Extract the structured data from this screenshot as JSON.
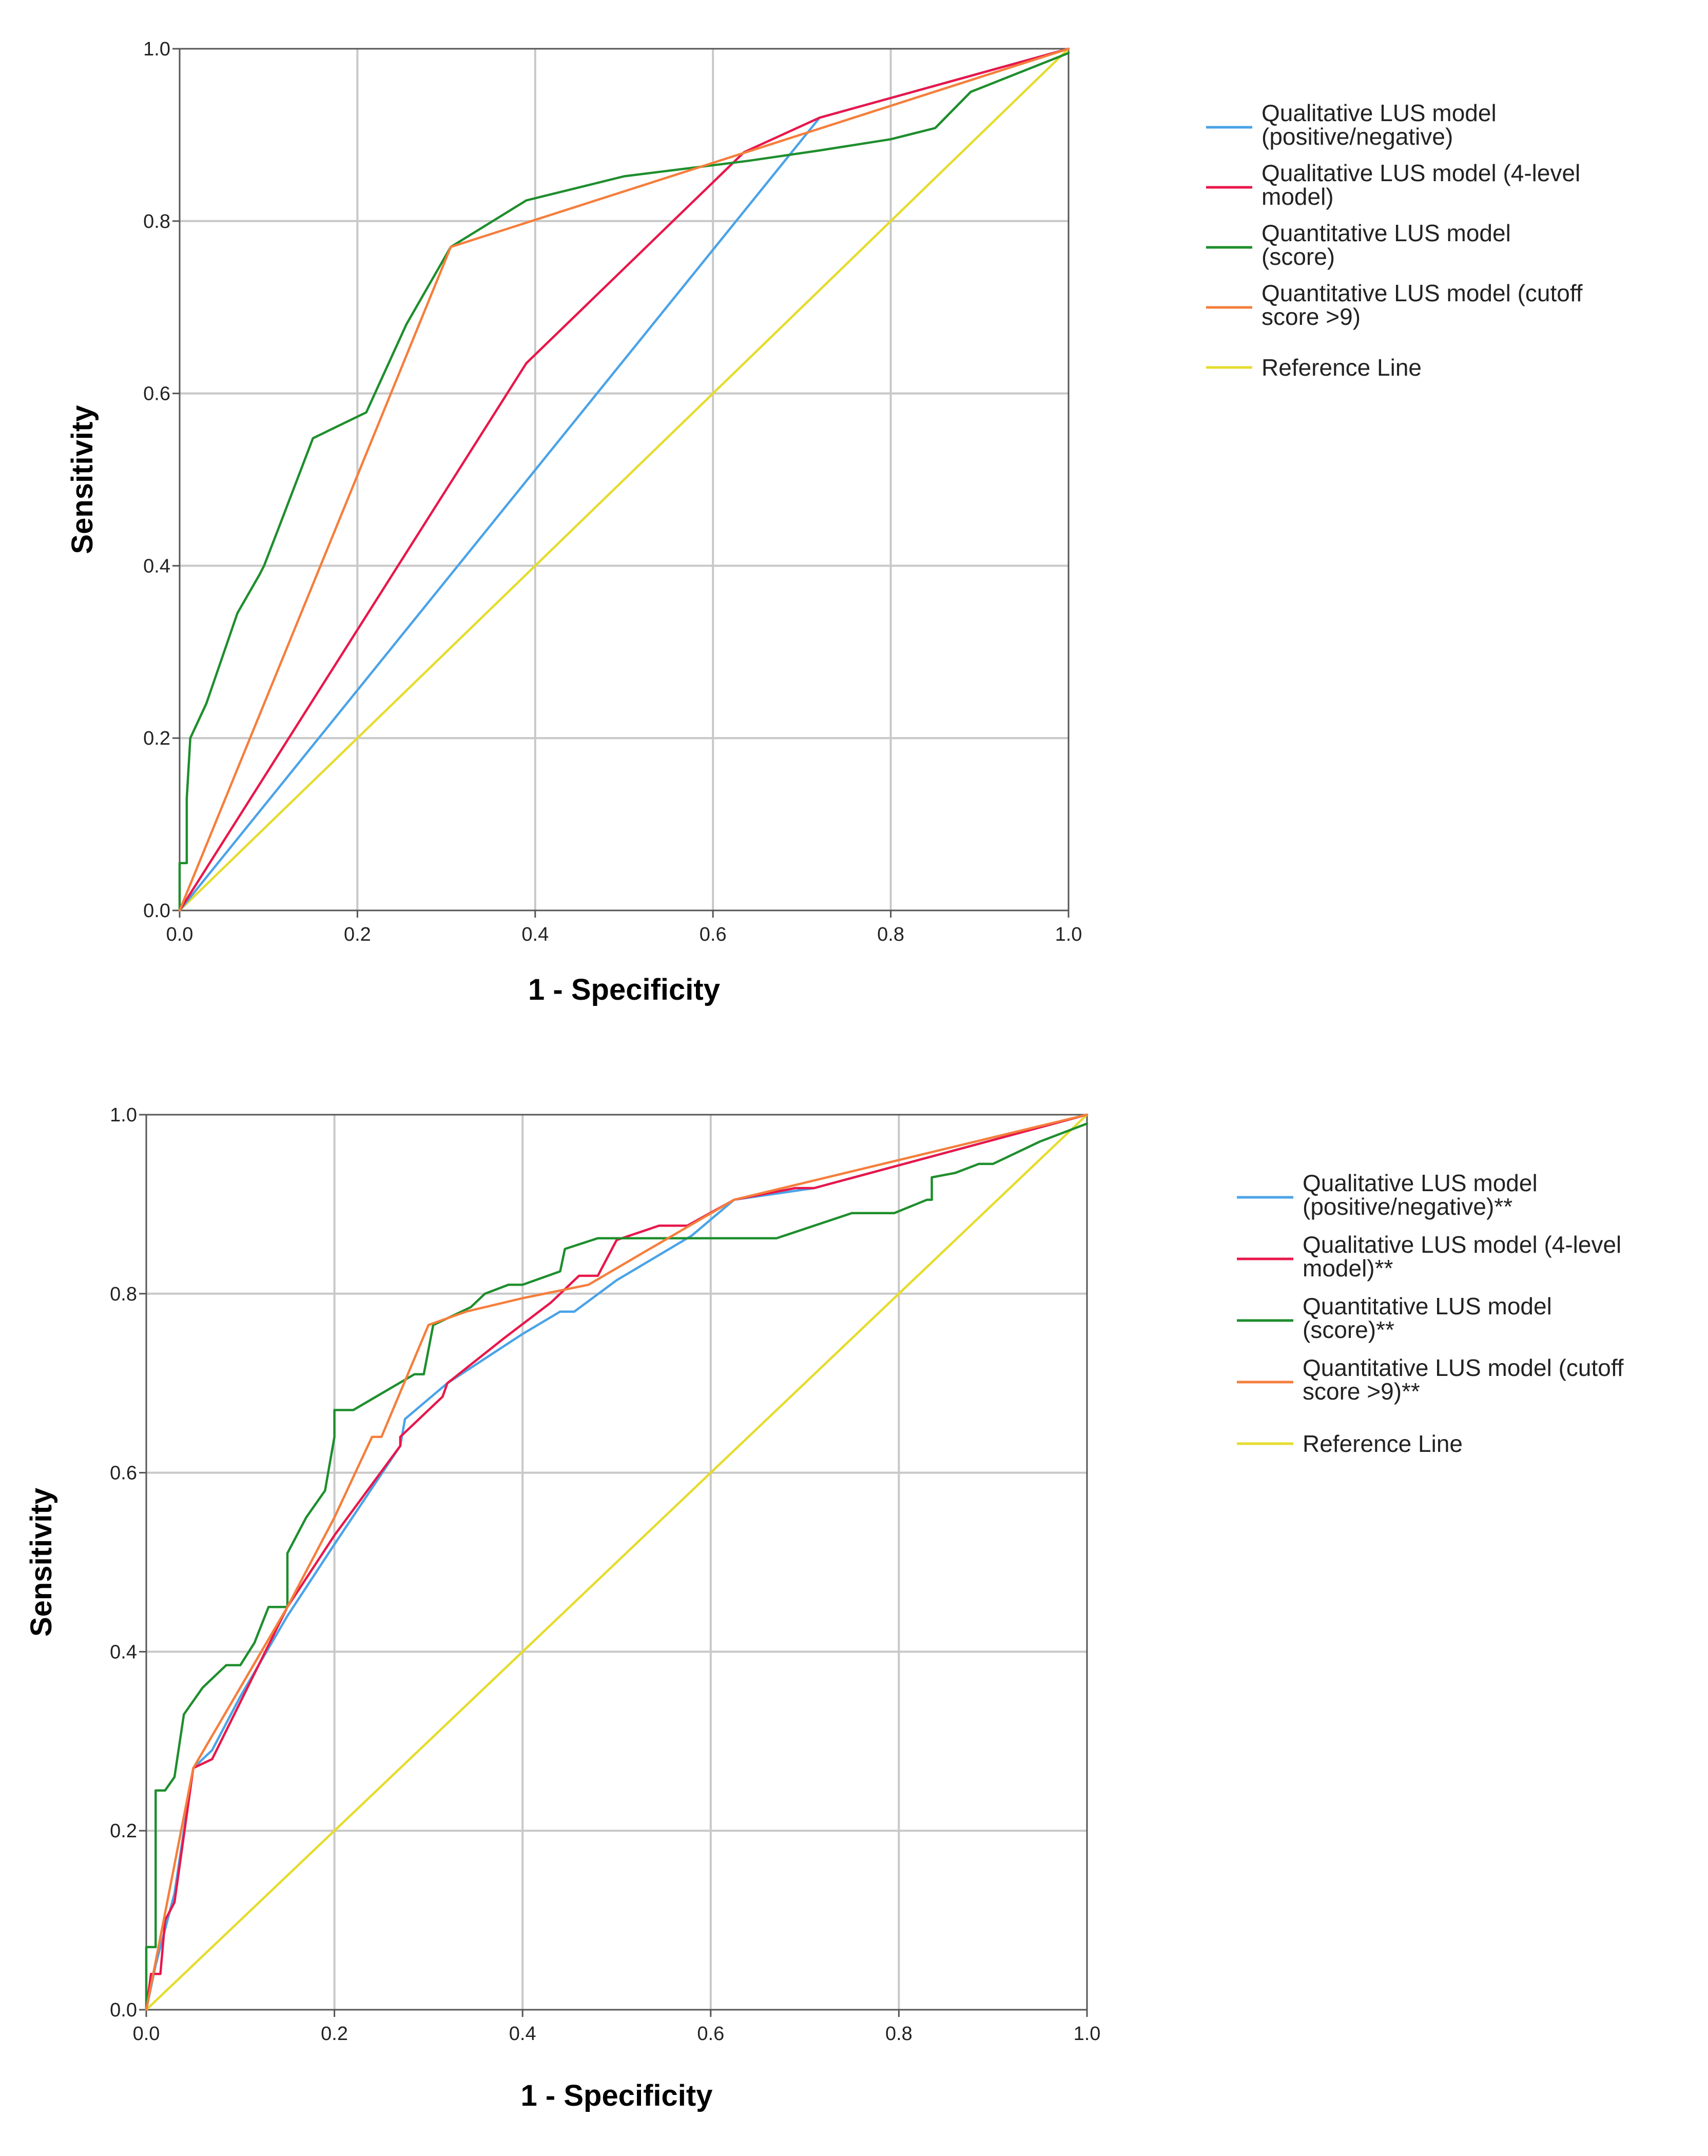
{
  "chart_data": [
    {
      "type": "line",
      "xlabel": "1 - Specificity",
      "ylabel": "Sensitivity",
      "xlim": [
        0,
        1
      ],
      "ylim": [
        0,
        1
      ],
      "xticks": [
        "0.0",
        "0.2",
        "0.4",
        "0.6",
        "0.8",
        "1.0"
      ],
      "yticks": [
        "0.0",
        "0.2",
        "0.4",
        "0.6",
        "0.8",
        "1.0"
      ],
      "grid": true,
      "legend_position": "right",
      "series": [
        {
          "name": "Qualitative LUS model (positive/negative)",
          "legend_lines": [
            "Qualitative LUS model",
            "(positive/negative)"
          ],
          "color": "#4aa3e8",
          "points": [
            [
              0,
              0
            ],
            [
              0.72,
              0.92
            ],
            [
              1,
              1
            ]
          ]
        },
        {
          "name": "Qualitative LUS model (4-level model)",
          "legend_lines": [
            "Qualitative LUS model (4-level",
            "model)"
          ],
          "color": "#e8174b",
          "points": [
            [
              0,
              0
            ],
            [
              0.39,
              0.635
            ],
            [
              0.635,
              0.88
            ],
            [
              0.72,
              0.92
            ],
            [
              1,
              1
            ]
          ]
        },
        {
          "name": "Quantitative LUS model (score)",
          "legend_lines": [
            "Quantitative LUS model",
            "(score)"
          ],
          "color": "#1e8e2d",
          "points": [
            [
              0,
              0
            ],
            [
              0,
              0.055
            ],
            [
              0.008,
              0.055
            ],
            [
              0.008,
              0.13
            ],
            [
              0.012,
              0.2
            ],
            [
              0.03,
              0.24
            ],
            [
              0.04,
              0.27
            ],
            [
              0.065,
              0.345
            ],
            [
              0.09,
              0.39
            ],
            [
              0.095,
              0.4
            ],
            [
              0.11,
              0.44
            ],
            [
              0.15,
              0.548
            ],
            [
              0.21,
              0.578
            ],
            [
              0.255,
              0.68
            ],
            [
              0.305,
              0.77
            ],
            [
              0.39,
              0.824
            ],
            [
              0.5,
              0.852
            ],
            [
              0.64,
              0.87
            ],
            [
              0.72,
              0.882
            ],
            [
              0.8,
              0.895
            ],
            [
              0.85,
              0.908
            ],
            [
              0.89,
              0.95
            ],
            [
              1,
              0.995
            ]
          ]
        },
        {
          "name": "Quantitative LUS model (cutoff score >9)",
          "legend_lines": [
            "Quantitative LUS model (cutoff",
            "score >9)"
          ],
          "color": "#f57e3c",
          "points": [
            [
              0,
              0
            ],
            [
              0.305,
              0.77
            ],
            [
              1,
              1
            ]
          ]
        },
        {
          "name": "Reference Line",
          "legend_lines": [
            "Reference Line"
          ],
          "color": "#e6dc2e",
          "points": [
            [
              0,
              0
            ],
            [
              1,
              1
            ]
          ]
        }
      ]
    },
    {
      "type": "line",
      "xlabel": "1 - Specificity",
      "ylabel": "Sensitivity",
      "xlim": [
        0,
        1
      ],
      "ylim": [
        0,
        1
      ],
      "xticks": [
        "0.0",
        "0.2",
        "0.4",
        "0.6",
        "0.8",
        "1.0"
      ],
      "yticks": [
        "0.0",
        "0.2",
        "0.4",
        "0.6",
        "0.8",
        "1.0"
      ],
      "grid": true,
      "legend_position": "right",
      "series": [
        {
          "name": "Qualitative LUS model (positive/negative)**",
          "legend_lines": [
            "Qualitative LUS model",
            "(positive/negative)**"
          ],
          "color": "#4aa3e8",
          "points": [
            [
              0,
              0
            ],
            [
              0.01,
              0.05
            ],
            [
              0.03,
              0.13
            ],
            [
              0.05,
              0.27
            ],
            [
              0.07,
              0.29
            ],
            [
              0.1,
              0.35
            ],
            [
              0.15,
              0.44
            ],
            [
              0.2,
              0.52
            ],
            [
              0.27,
              0.63
            ],
            [
              0.275,
              0.66
            ],
            [
              0.32,
              0.7
            ],
            [
              0.4,
              0.755
            ],
            [
              0.44,
              0.78
            ],
            [
              0.455,
              0.78
            ],
            [
              0.5,
              0.815
            ],
            [
              0.58,
              0.865
            ],
            [
              0.625,
              0.905
            ],
            [
              0.71,
              0.918
            ],
            [
              1,
              1
            ]
          ]
        },
        {
          "name": "Qualitative LUS model (4-level model)**",
          "legend_lines": [
            "Qualitative LUS model (4-level",
            "model)**"
          ],
          "color": "#e8174b",
          "points": [
            [
              0,
              0
            ],
            [
              0.005,
              0.04
            ],
            [
              0.015,
              0.04
            ],
            [
              0.02,
              0.1
            ],
            [
              0.03,
              0.12
            ],
            [
              0.05,
              0.27
            ],
            [
              0.07,
              0.28
            ],
            [
              0.15,
              0.45
            ],
            [
              0.2,
              0.53
            ],
            [
              0.27,
              0.63
            ],
            [
              0.27,
              0.64
            ],
            [
              0.28,
              0.65
            ],
            [
              0.315,
              0.685
            ],
            [
              0.32,
              0.7
            ],
            [
              0.38,
              0.75
            ],
            [
              0.43,
              0.79
            ],
            [
              0.46,
              0.82
            ],
            [
              0.48,
              0.82
            ],
            [
              0.5,
              0.86
            ],
            [
              0.545,
              0.876
            ],
            [
              0.575,
              0.876
            ],
            [
              0.625,
              0.905
            ],
            [
              0.69,
              0.918
            ],
            [
              0.71,
              0.918
            ],
            [
              1,
              1
            ]
          ]
        },
        {
          "name": "Quantitative LUS model (score)**",
          "legend_lines": [
            "Quantitative LUS model",
            "(score)**"
          ],
          "color": "#1e8e2d",
          "points": [
            [
              0,
              0
            ],
            [
              0,
              0.07
            ],
            [
              0.01,
              0.07
            ],
            [
              0.01,
              0.245
            ],
            [
              0.02,
              0.245
            ],
            [
              0.03,
              0.26
            ],
            [
              0.04,
              0.33
            ],
            [
              0.06,
              0.36
            ],
            [
              0.085,
              0.385
            ],
            [
              0.1,
              0.385
            ],
            [
              0.115,
              0.41
            ],
            [
              0.13,
              0.45
            ],
            [
              0.15,
              0.45
            ],
            [
              0.15,
              0.51
            ],
            [
              0.17,
              0.55
            ],
            [
              0.19,
              0.58
            ],
            [
              0.2,
              0.64
            ],
            [
              0.2,
              0.67
            ],
            [
              0.22,
              0.67
            ],
            [
              0.285,
              0.71
            ],
            [
              0.295,
              0.71
            ],
            [
              0.305,
              0.765
            ],
            [
              0.345,
              0.785
            ],
            [
              0.36,
              0.8
            ],
            [
              0.385,
              0.81
            ],
            [
              0.4,
              0.81
            ],
            [
              0.44,
              0.825
            ],
            [
              0.445,
              0.85
            ],
            [
              0.48,
              0.862
            ],
            [
              0.6,
              0.862
            ],
            [
              0.67,
              0.862
            ],
            [
              0.75,
              0.89
            ],
            [
              0.795,
              0.89
            ],
            [
              0.83,
              0.905
            ],
            [
              0.835,
              0.905
            ],
            [
              0.835,
              0.93
            ],
            [
              0.86,
              0.935
            ],
            [
              0.885,
              0.945
            ],
            [
              0.9,
              0.945
            ],
            [
              0.95,
              0.97
            ],
            [
              1,
              0.99
            ]
          ]
        },
        {
          "name": "Quantitative LUS model (cutoff score >9)**",
          "legend_lines": [
            "Quantitative LUS model (cutoff",
            "score >9)**"
          ],
          "color": "#f57e3c",
          "points": [
            [
              0,
              0
            ],
            [
              0.05,
              0.27
            ],
            [
              0.15,
              0.45
            ],
            [
              0.2,
              0.55
            ],
            [
              0.24,
              0.64
            ],
            [
              0.25,
              0.64
            ],
            [
              0.3,
              0.765
            ],
            [
              0.34,
              0.78
            ],
            [
              0.4,
              0.795
            ],
            [
              0.47,
              0.81
            ],
            [
              0.535,
              0.85
            ],
            [
              0.625,
              0.905
            ],
            [
              1,
              1
            ]
          ]
        },
        {
          "name": "Reference Line",
          "legend_lines": [
            "Reference Line"
          ],
          "color": "#e6dc2e",
          "points": [
            [
              0,
              0
            ],
            [
              1,
              1
            ]
          ]
        }
      ]
    }
  ]
}
